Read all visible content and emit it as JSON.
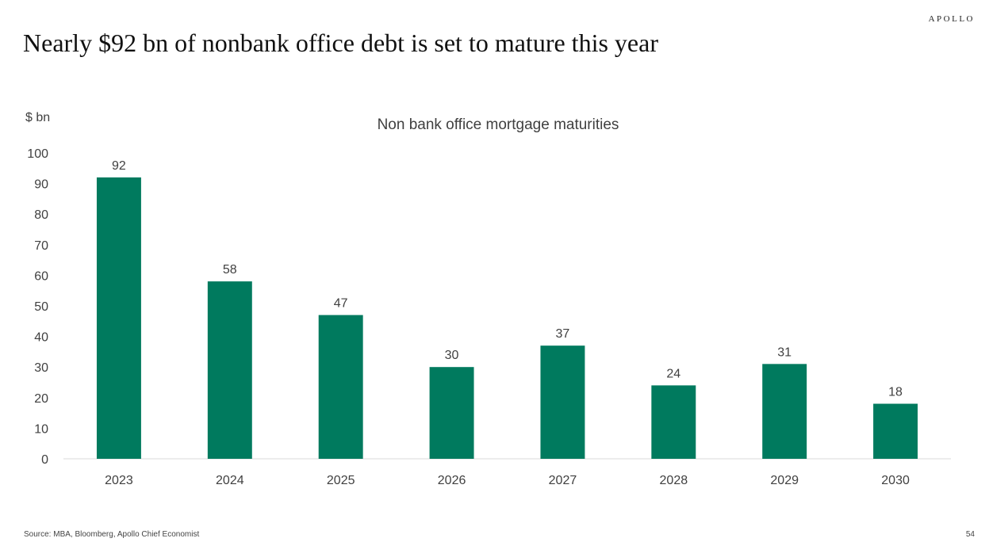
{
  "brand": "APOLLO",
  "title": "Nearly $92 bn of nonbank office debt is set to mature this year",
  "footer": {
    "source": "Source: MBA, Bloomberg, Apollo Chief Economist",
    "page_number": "54"
  },
  "colors": {
    "bar": "#007a5e",
    "text": "#404040",
    "axis": "#d9d9d9"
  },
  "chart_data": {
    "type": "bar",
    "title": "Non bank office mortgage maturities",
    "ylabel": "$ bn",
    "xlabel": "",
    "categories": [
      "2023",
      "2024",
      "2025",
      "2026",
      "2027",
      "2028",
      "2029",
      "2030"
    ],
    "values": [
      92,
      58,
      47,
      30,
      37,
      24,
      31,
      18
    ],
    "ylim": [
      0,
      100
    ],
    "yticks": [
      0,
      10,
      20,
      30,
      40,
      50,
      60,
      70,
      80,
      90,
      100
    ],
    "data_labels": true,
    "grid": false,
    "legend": "none"
  }
}
